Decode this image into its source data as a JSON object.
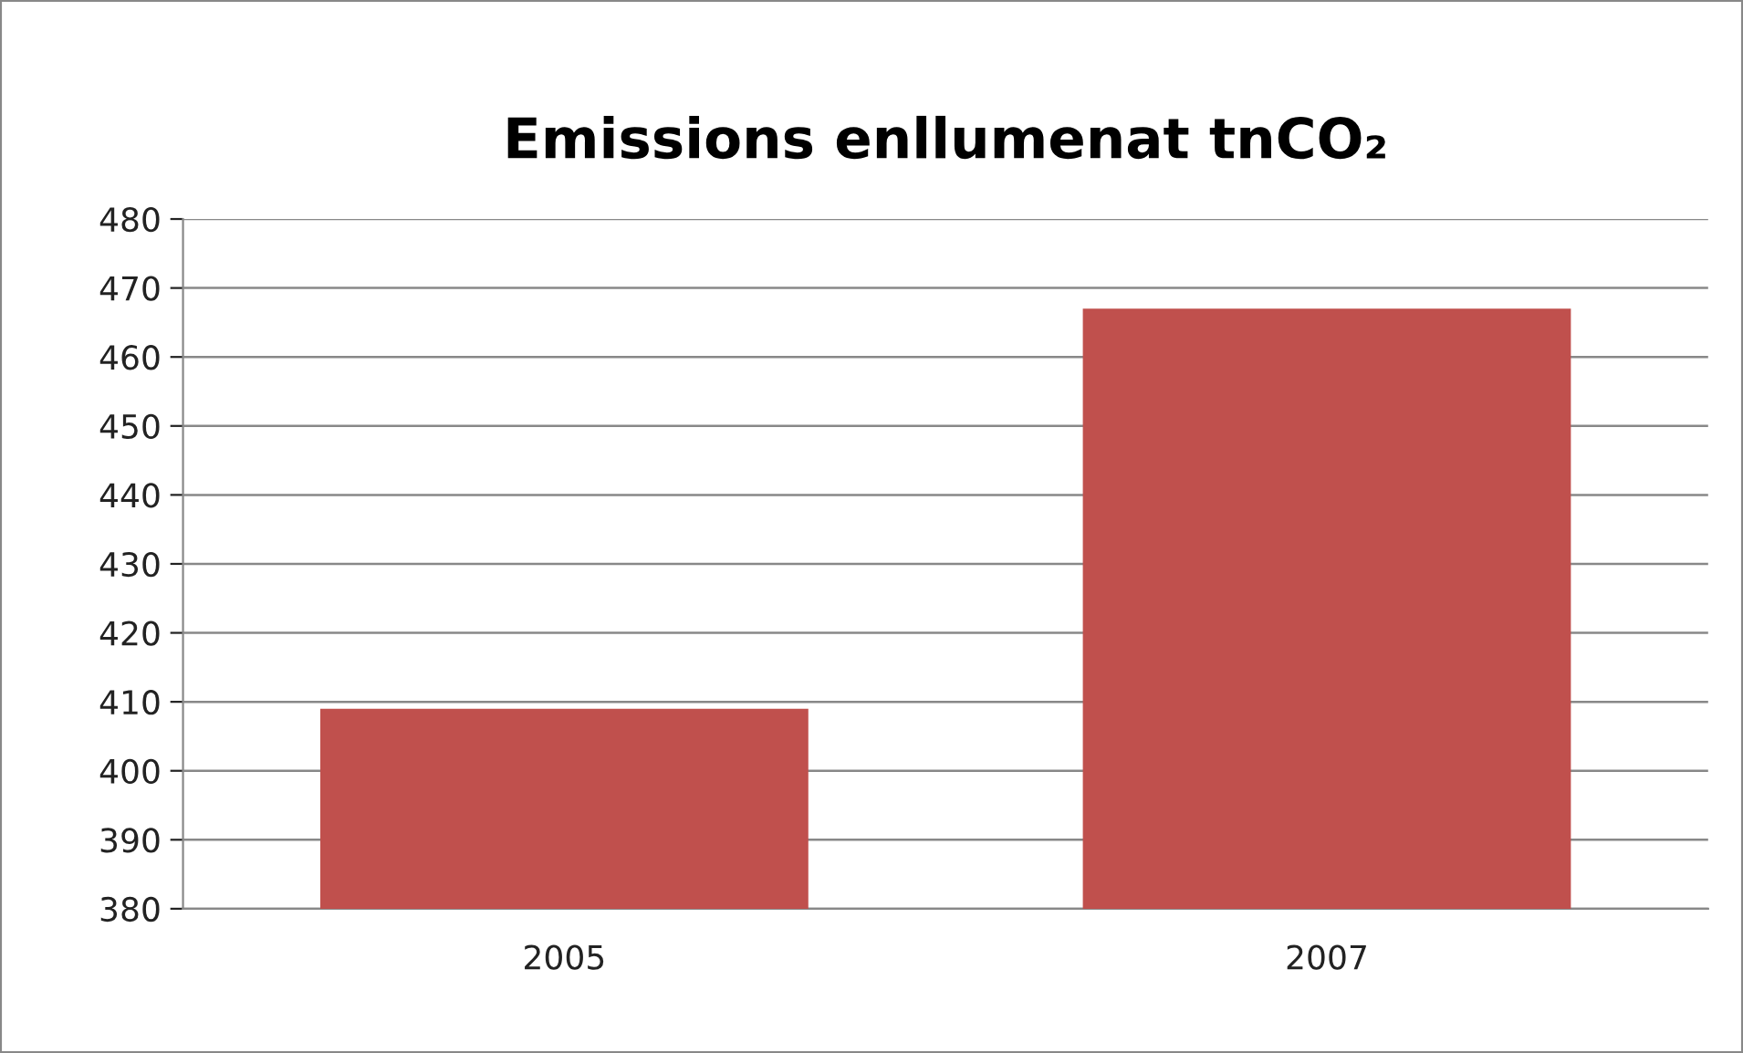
{
  "chart_data": {
    "type": "bar",
    "title": "Emissions enllumenat tnCO₂",
    "categories": [
      "2005",
      "2007"
    ],
    "values": [
      409,
      467
    ],
    "color": "#c0504d",
    "ylim": [
      380,
      480
    ],
    "yticks": [
      380,
      390,
      400,
      410,
      420,
      430,
      440,
      450,
      460,
      470,
      480
    ],
    "grid": "y",
    "legend": false
  }
}
